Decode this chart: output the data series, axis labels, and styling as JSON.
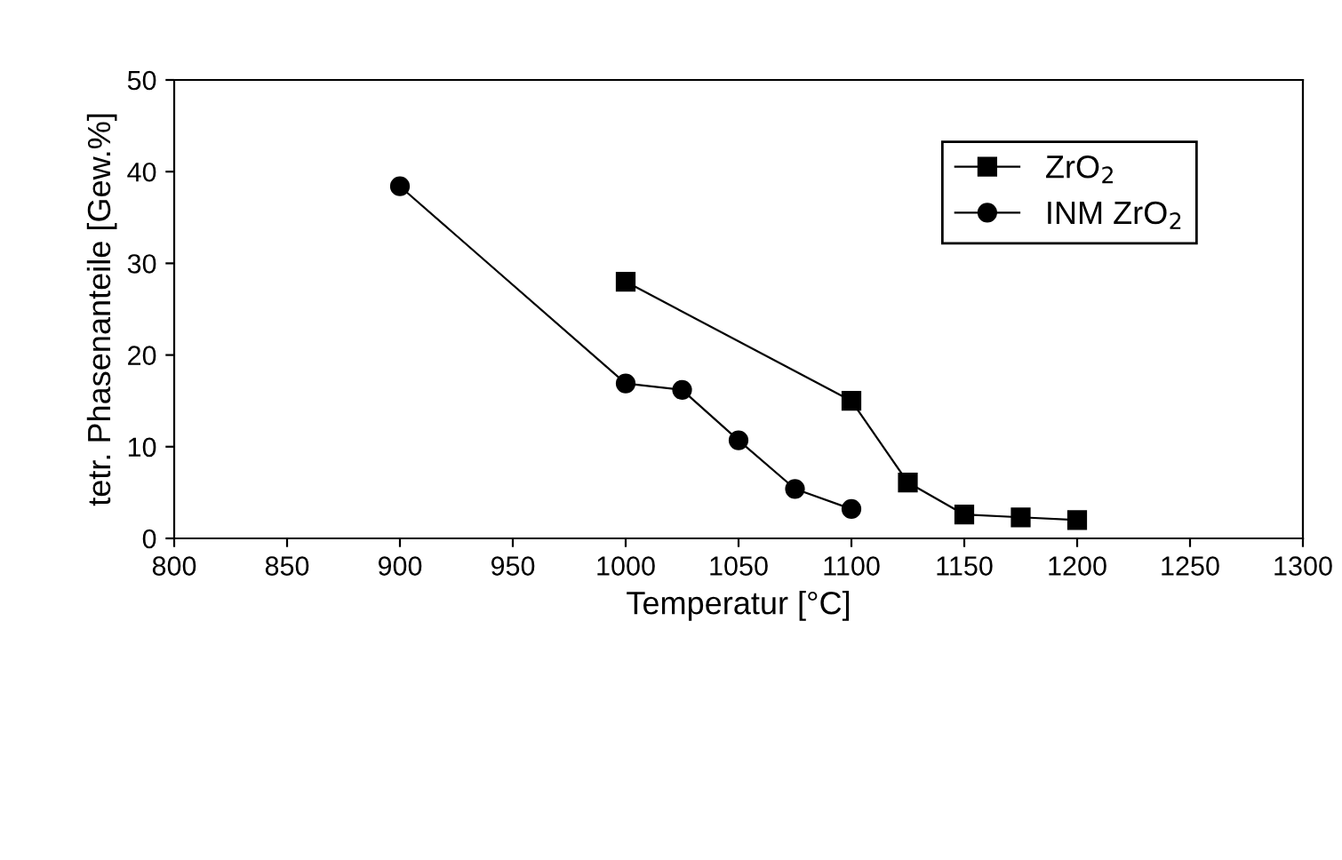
{
  "chart_data": {
    "type": "line",
    "xlabel": "Temperatur [°C]",
    "ylabel": "tetr. Phasenanteile [Gew.%]",
    "xlim": [
      800,
      1300
    ],
    "xticks": [
      800,
      850,
      900,
      950,
      1000,
      1050,
      1100,
      1150,
      1200,
      1250,
      1300
    ],
    "ylim": [
      0,
      50
    ],
    "yticks": [
      0,
      10,
      20,
      30,
      40,
      50
    ],
    "grid": false,
    "legend": "top right",
    "series": [
      {
        "name": "ZrO$_{2}$",
        "color": "#000000",
        "marker": "square",
        "x": [
          1000,
          1100,
          1125,
          1150,
          1175,
          1200
        ],
        "values": [
          28.0,
          15.0,
          6.1,
          2.6,
          2.3,
          2.0
        ]
      },
      {
        "name": "INM ZrO$_{2}$",
        "color": "#000000",
        "marker": "circle",
        "x": [
          900,
          1000,
          1025,
          1050,
          1075,
          1100
        ],
        "values": [
          38.4,
          16.9,
          16.2,
          10.7,
          5.4,
          3.2
        ]
      }
    ]
  }
}
